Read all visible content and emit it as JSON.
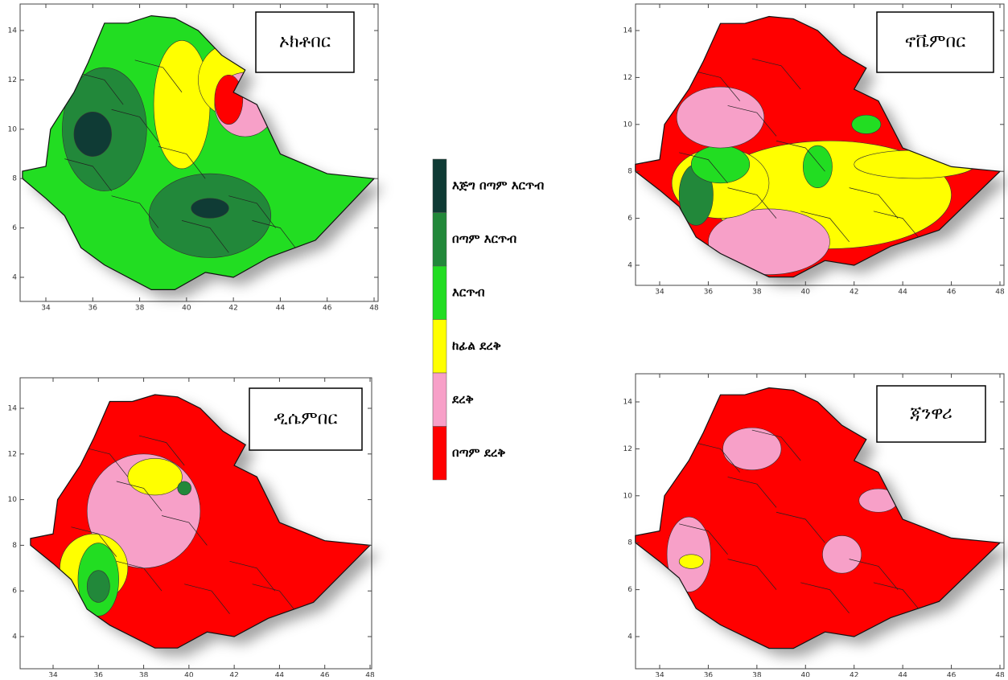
{
  "panels": [
    {
      "title": "ኦክቶበር"
    },
    {
      "title": "ኖቬምበር"
    },
    {
      "title": "ዲሴምበር"
    },
    {
      "title": "ጃንዋሪ"
    }
  ],
  "axes": {
    "x_ticks": [
      "34",
      "36",
      "38",
      "40",
      "42",
      "44",
      "46",
      "48"
    ],
    "y_ticks": [
      "4",
      "6",
      "8",
      "10",
      "12",
      "14"
    ]
  },
  "legend": {
    "items": [
      {
        "label": "እጅግ በጣም እርጥብ",
        "color": "#0f3b35"
      },
      {
        "label": "በጣም እርጥብ",
        "color": "#22883a"
      },
      {
        "label": "እርጥብ",
        "color": "#22dd22"
      },
      {
        "label": "ከፊል ደረቅ",
        "color": "#ffff00"
      },
      {
        "label": "ደረቅ",
        "color": "#f7a0c8"
      },
      {
        "label": "በጣም ደረቅ",
        "color": "#ff0000"
      }
    ]
  }
}
